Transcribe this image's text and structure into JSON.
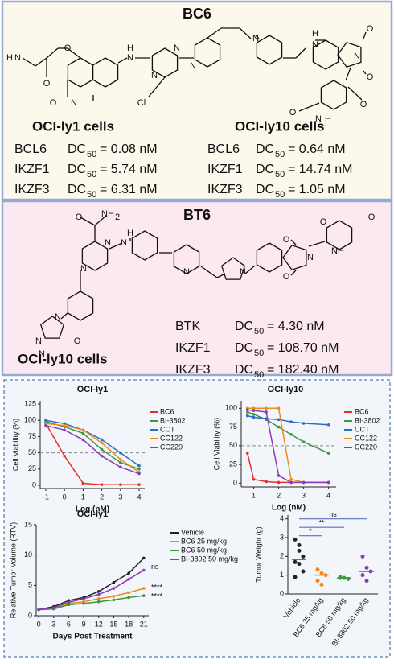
{
  "bc6": {
    "title": "BC6",
    "atoms": [
      "H",
      "N",
      "O",
      "O",
      "O",
      "N",
      "H",
      "N",
      "N",
      "N",
      "Cl",
      "N",
      "N",
      "H",
      "N",
      "O",
      "O",
      "N",
      "O",
      "N",
      "H",
      "O"
    ],
    "groups": [
      {
        "cell_line": "OCI-ly1 cells",
        "rows": [
          {
            "target": "BCL6",
            "metric": "DC",
            "metric_sub": "50",
            "value": "= 0.08 nM"
          },
          {
            "target": "IKZF1",
            "metric": "DC",
            "metric_sub": "50",
            "value": "= 5.74 nM"
          },
          {
            "target": "IKZF3",
            "metric": "DC",
            "metric_sub": "50",
            "value": "= 6.31 nM"
          }
        ]
      },
      {
        "cell_line": "OCI-ly10 cells",
        "rows": [
          {
            "target": "BCL6",
            "metric": "DC",
            "metric_sub": "50",
            "value": "= 0.64 nM"
          },
          {
            "target": "IKZF1",
            "metric": "DC",
            "metric_sub": "50",
            "value": "= 14.74 nM"
          },
          {
            "target": "IKZF3",
            "metric": "DC",
            "metric_sub": "50",
            "value": "= 1.05 nM"
          }
        ]
      }
    ]
  },
  "bt6": {
    "title": "BT6",
    "atoms": [
      "O",
      "NH",
      "2",
      "N",
      "N",
      "N",
      "H",
      "N",
      "N",
      "N",
      "O",
      "N",
      "N",
      "O",
      "N",
      "O",
      "O",
      "NH",
      "O"
    ],
    "cell_line": "OCI-ly10 cells",
    "rows": [
      {
        "target": "BTK",
        "metric": "DC",
        "metric_sub": "50",
        "value": "= 4.30 nM"
      },
      {
        "target": "IKZF1",
        "metric": "DC",
        "metric_sub": "50",
        "value": "= 108.70 nM"
      },
      {
        "target": "IKZF3",
        "metric": "DC",
        "metric_sub": "50",
        "value": "= 182.40 nM"
      }
    ]
  },
  "chart_data": [
    {
      "type": "line",
      "title": "OCI-ly1",
      "xlabel": "Log (nM)",
      "ylabel": "Cell Viability (%)",
      "x": [
        -1,
        0,
        1,
        2,
        3,
        4
      ],
      "series": [
        {
          "name": "BC6",
          "color": "#e8302a",
          "values": [
            95,
            45,
            3,
            1,
            1,
            1
          ]
        },
        {
          "name": "BI-3802",
          "color": "#3a9a3a",
          "values": [
            98,
            90,
            80,
            55,
            35,
            25
          ]
        },
        {
          "name": "CCT",
          "color": "#2f6fc0",
          "values": [
            100,
            95,
            85,
            70,
            50,
            30
          ]
        },
        {
          "name": "CC122",
          "color": "#f08a1c",
          "values": [
            95,
            92,
            85,
            65,
            40,
            20
          ]
        },
        {
          "name": "CC220",
          "color": "#8a3cb8",
          "values": [
            92,
            85,
            70,
            45,
            28,
            18
          ]
        }
      ],
      "xlim": [
        -1.3,
        4.3
      ],
      "ylim": [
        -5,
        130
      ],
      "xticks": [
        -1,
        0,
        1,
        2,
        3,
        4
      ],
      "yticks": [
        0,
        25,
        50,
        75,
        100,
        125
      ],
      "hline": 50
    },
    {
      "type": "line",
      "title": "OCI-ly10",
      "xlabel": "Log (nM)",
      "ylabel": "Cell Viability (%)",
      "x": [
        0.75,
        1,
        1.5,
        2,
        2.5,
        3,
        4
      ],
      "series": [
        {
          "name": "BC6",
          "color": "#e8302a",
          "values": [
            40,
            5,
            2,
            1,
            1,
            1,
            1
          ]
        },
        {
          "name": "BI-3802",
          "color": "#3a9a3a",
          "values": [
            95,
            92,
            85,
            75,
            65,
            55,
            40
          ]
        },
        {
          "name": "CCT",
          "color": "#2f6fc0",
          "values": [
            90,
            88,
            86,
            85,
            82,
            80,
            78
          ]
        },
        {
          "name": "CC122",
          "color": "#f08a1c",
          "values": [
            100,
            100,
            100,
            100,
            5,
            1,
            1
          ]
        },
        {
          "name": "CC220",
          "color": "#8a3cb8",
          "values": [
            98,
            97,
            95,
            10,
            1,
            1,
            1
          ]
        }
      ],
      "xlim": [
        0.5,
        4.3
      ],
      "ylim": [
        -5,
        110
      ],
      "xticks": [
        1,
        2,
        3,
        4
      ],
      "yticks": [
        0,
        25,
        50,
        75,
        100
      ],
      "hline": 50
    },
    {
      "type": "line",
      "title": "OCI-ly1",
      "xlabel": "Days Post Treatment",
      "ylabel": "Relative Tumor Volume (RTV)",
      "x": [
        0,
        3,
        6,
        9,
        12,
        15,
        18,
        21
      ],
      "series": [
        {
          "name": "Vehicle",
          "color": "#222222",
          "values": [
            1,
            1.5,
            2.5,
            3,
            4,
            5.5,
            7,
            9.5
          ]
        },
        {
          "name": "BC6 25 mg/kg",
          "color": "#f08a1c",
          "values": [
            1,
            1.2,
            2,
            2.3,
            2.8,
            3.2,
            3.8,
            4.5
          ]
        },
        {
          "name": "BC6 50 mg/kg",
          "color": "#3a9a3a",
          "values": [
            1,
            1.1,
            1.8,
            2,
            2.3,
            2.6,
            3,
            3.3
          ]
        },
        {
          "name": "BI-3802 50 mg/kg",
          "color": "#8a3cb8",
          "values": [
            1,
            1.3,
            2.2,
            2.8,
            3.5,
            4.5,
            6,
            7.5
          ]
        }
      ],
      "xlim": [
        -0.5,
        22
      ],
      "ylim": [
        0,
        15
      ],
      "xticks": [
        0,
        3,
        6,
        9,
        12,
        15,
        18,
        21
      ],
      "yticks": [
        0,
        5,
        10,
        15
      ],
      "annotations": [
        "ns",
        "****",
        "****"
      ]
    },
    {
      "type": "dot",
      "ylabel": "Tumor Weight (g)",
      "categories": [
        "Vehicle",
        "BC6 25 mg/kg",
        "BC6 50 mg/kg",
        "BI-3802 50 mg/kg"
      ],
      "colors": [
        "#222222",
        "#f08a1c",
        "#3a9a3a",
        "#8a3cb8"
      ],
      "points": [
        [
          2.9,
          2.3,
          2.0,
          1.7,
          1.6,
          1.2,
          0.9,
          2.6
        ],
        [
          1.3,
          1.1,
          1.0,
          0.7,
          0.5
        ],
        [
          0.9,
          0.85,
          0.8,
          0.85
        ],
        [
          2.0,
          1.4,
          1.2,
          1.0,
          0.7
        ]
      ],
      "medians": [
        1.85,
        1.0,
        0.85,
        1.2
      ],
      "ylim": [
        0,
        4.2
      ],
      "yticks": [
        0,
        1,
        2,
        3,
        4
      ],
      "comparisons": [
        "*",
        "**",
        "ns"
      ]
    }
  ]
}
